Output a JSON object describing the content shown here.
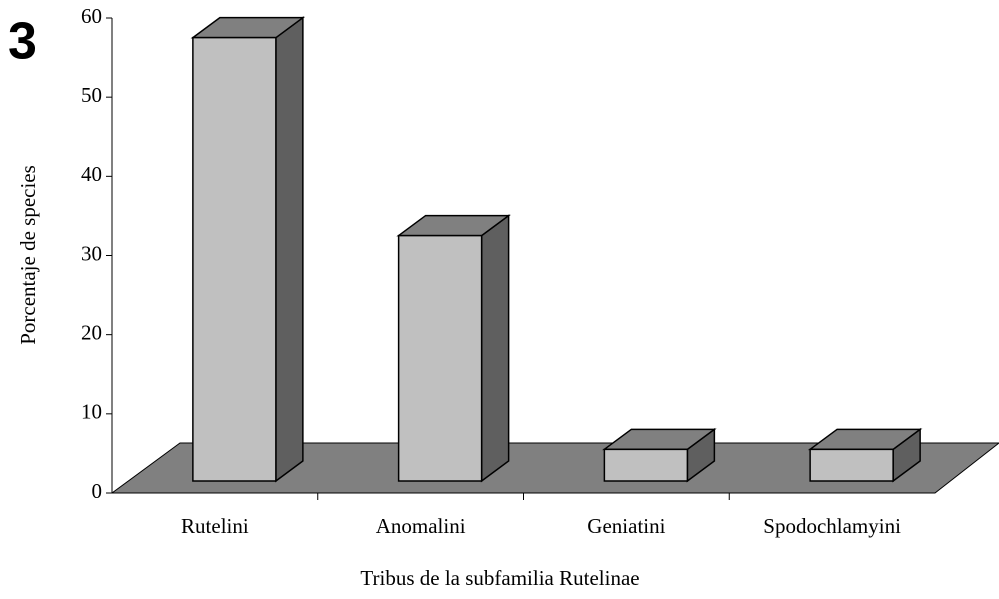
{
  "figure_label": "3",
  "chart_data": {
    "type": "bar3d",
    "y_label": "Porcentaje de species",
    "x_label": "Tribus de la subfamilia Rutelinae",
    "categories": [
      "Rutelini",
      "Anomalini",
      "Geniatini",
      "Spodochlamyini"
    ],
    "values": [
      56,
      31,
      4,
      4
    ],
    "ylim": [
      0,
      60
    ],
    "yticks": [
      0,
      10,
      20,
      30,
      40,
      50,
      60
    ],
    "colors": {
      "front": "#c0c0c0",
      "top": "#808080",
      "side": "#5f5f5f",
      "floor": "#808080"
    }
  }
}
